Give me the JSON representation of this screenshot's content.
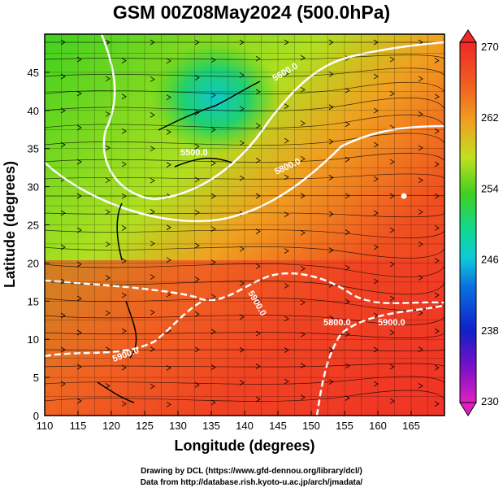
{
  "title": "GSM 00Z08May2024 (500.0hPa)",
  "axes": {
    "xlabel": "Longitude (degrees)",
    "ylabel": "Latitude  (degrees)",
    "lon_range": [
      110,
      170
    ],
    "lat_range": [
      0,
      50
    ],
    "lon_ticks": [
      "110",
      "115",
      "120",
      "125",
      "130",
      "135",
      "140",
      "145",
      "150",
      "155",
      "160",
      "165"
    ],
    "lat_ticks": [
      "0",
      "5",
      "10",
      "15",
      "20",
      "25",
      "30",
      "35",
      "40",
      "45"
    ]
  },
  "colorbar": {
    "ticks": [
      "270",
      "262",
      "254",
      "246",
      "238",
      "230"
    ],
    "range": [
      230,
      270
    ],
    "colors": [
      "#e020c0",
      "#7a10c8",
      "#1020c8",
      "#0a70e0",
      "#10c8d8",
      "#10d890",
      "#40d020",
      "#b0e020",
      "#f0c020",
      "#f08020",
      "#f04020",
      "#f02828"
    ]
  },
  "contours": {
    "labels": [
      "5500.0",
      "5600.0",
      "5800.0",
      "5800.0",
      "5900.0",
      "5900.0",
      "5900.0"
    ]
  },
  "credits": {
    "line1": "Drawing by DCL (https://www.gfd-dennou.org/library/dcl/)",
    "line2": "Data from http://database.rish.kyoto-u.ac.jp/arch/jmadata/"
  }
}
